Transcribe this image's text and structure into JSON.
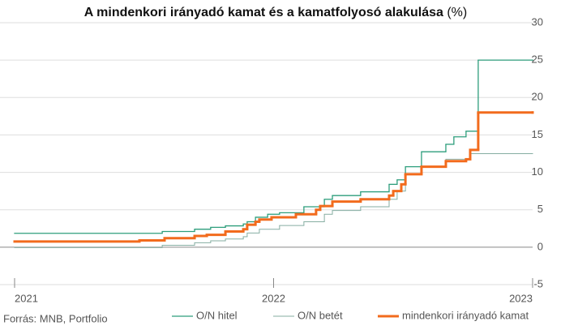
{
  "chart_data": {
    "type": "step",
    "title": "A mindenkori irányadó kamat és a kamatfolyosó alakulása",
    "title_unit": "(%)",
    "source": "Forrás: MNB, Portfolio",
    "xlim": [
      2021,
      2023
    ],
    "xticks": [
      2021,
      2022,
      2023
    ],
    "ylim": [
      -5,
      30
    ],
    "yticks": [
      -5,
      0,
      5,
      10,
      15,
      20,
      25,
      30
    ],
    "grid": true,
    "legend": "bottom",
    "series": [
      {
        "name": "O/N hitel",
        "color": "#2e9e7c",
        "width": 1.3,
        "x": [
          2021.0,
          2021.57,
          2021.695,
          2021.757,
          2021.814,
          2021.883,
          2021.898,
          2021.93,
          2021.977,
          2022.023,
          2022.117,
          2022.196,
          2022.227,
          2022.336,
          2022.446,
          2022.477,
          2022.509,
          2022.571,
          2022.665,
          2022.696,
          2022.743,
          2022.79,
          2023.0
        ],
        "values": [
          1.85,
          2.1,
          2.4,
          2.65,
          2.85,
          3.1,
          3.4,
          4.0,
          4.4,
          4.6,
          5.4,
          6.4,
          6.9,
          7.4,
          8.4,
          9.0,
          10.75,
          12.75,
          13.75,
          14.75,
          15.5,
          25,
          25
        ]
      },
      {
        "name": "O/N betét",
        "color": "#86aea2",
        "width": 1,
        "x": [
          2021.0,
          2021.57,
          2021.695,
          2021.757,
          2021.814,
          2021.883,
          2021.898,
          2021.945,
          2022.023,
          2022.117,
          2022.196,
          2022.227,
          2022.336,
          2022.446,
          2022.477,
          2022.509,
          2022.571,
          2022.665,
          2022.759,
          2023.0
        ],
        "values": [
          -0.05,
          0.25,
          0.6,
          0.85,
          1.1,
          1.4,
          1.9,
          2.4,
          2.9,
          3.4,
          4.4,
          4.9,
          5.4,
          6.4,
          7.5,
          9.75,
          10.75,
          11.75,
          12.5,
          12.5
        ]
      },
      {
        "name": "mindenkori irányadó kamat",
        "color": "#f26b1d",
        "width": 3,
        "x": [
          2021.0,
          2021.482,
          2021.579,
          2021.695,
          2021.742,
          2021.814,
          2021.883,
          2021.898,
          2021.93,
          2021.945,
          2021.992,
          2022.086,
          2022.164,
          2022.18,
          2022.227,
          2022.336,
          2022.446,
          2022.462,
          2022.493,
          2022.509,
          2022.571,
          2022.665,
          2022.743,
          2022.759,
          2022.79,
          2023.0
        ],
        "values": [
          0.75,
          0.9,
          1.2,
          1.5,
          1.65,
          2.1,
          2.4,
          3.0,
          3.4,
          3.7,
          4.0,
          4.4,
          5.0,
          5.5,
          6.1,
          6.4,
          6.9,
          7.5,
          8.4,
          9.75,
          10.75,
          11.5,
          11.75,
          13,
          18,
          18
        ]
      }
    ]
  }
}
